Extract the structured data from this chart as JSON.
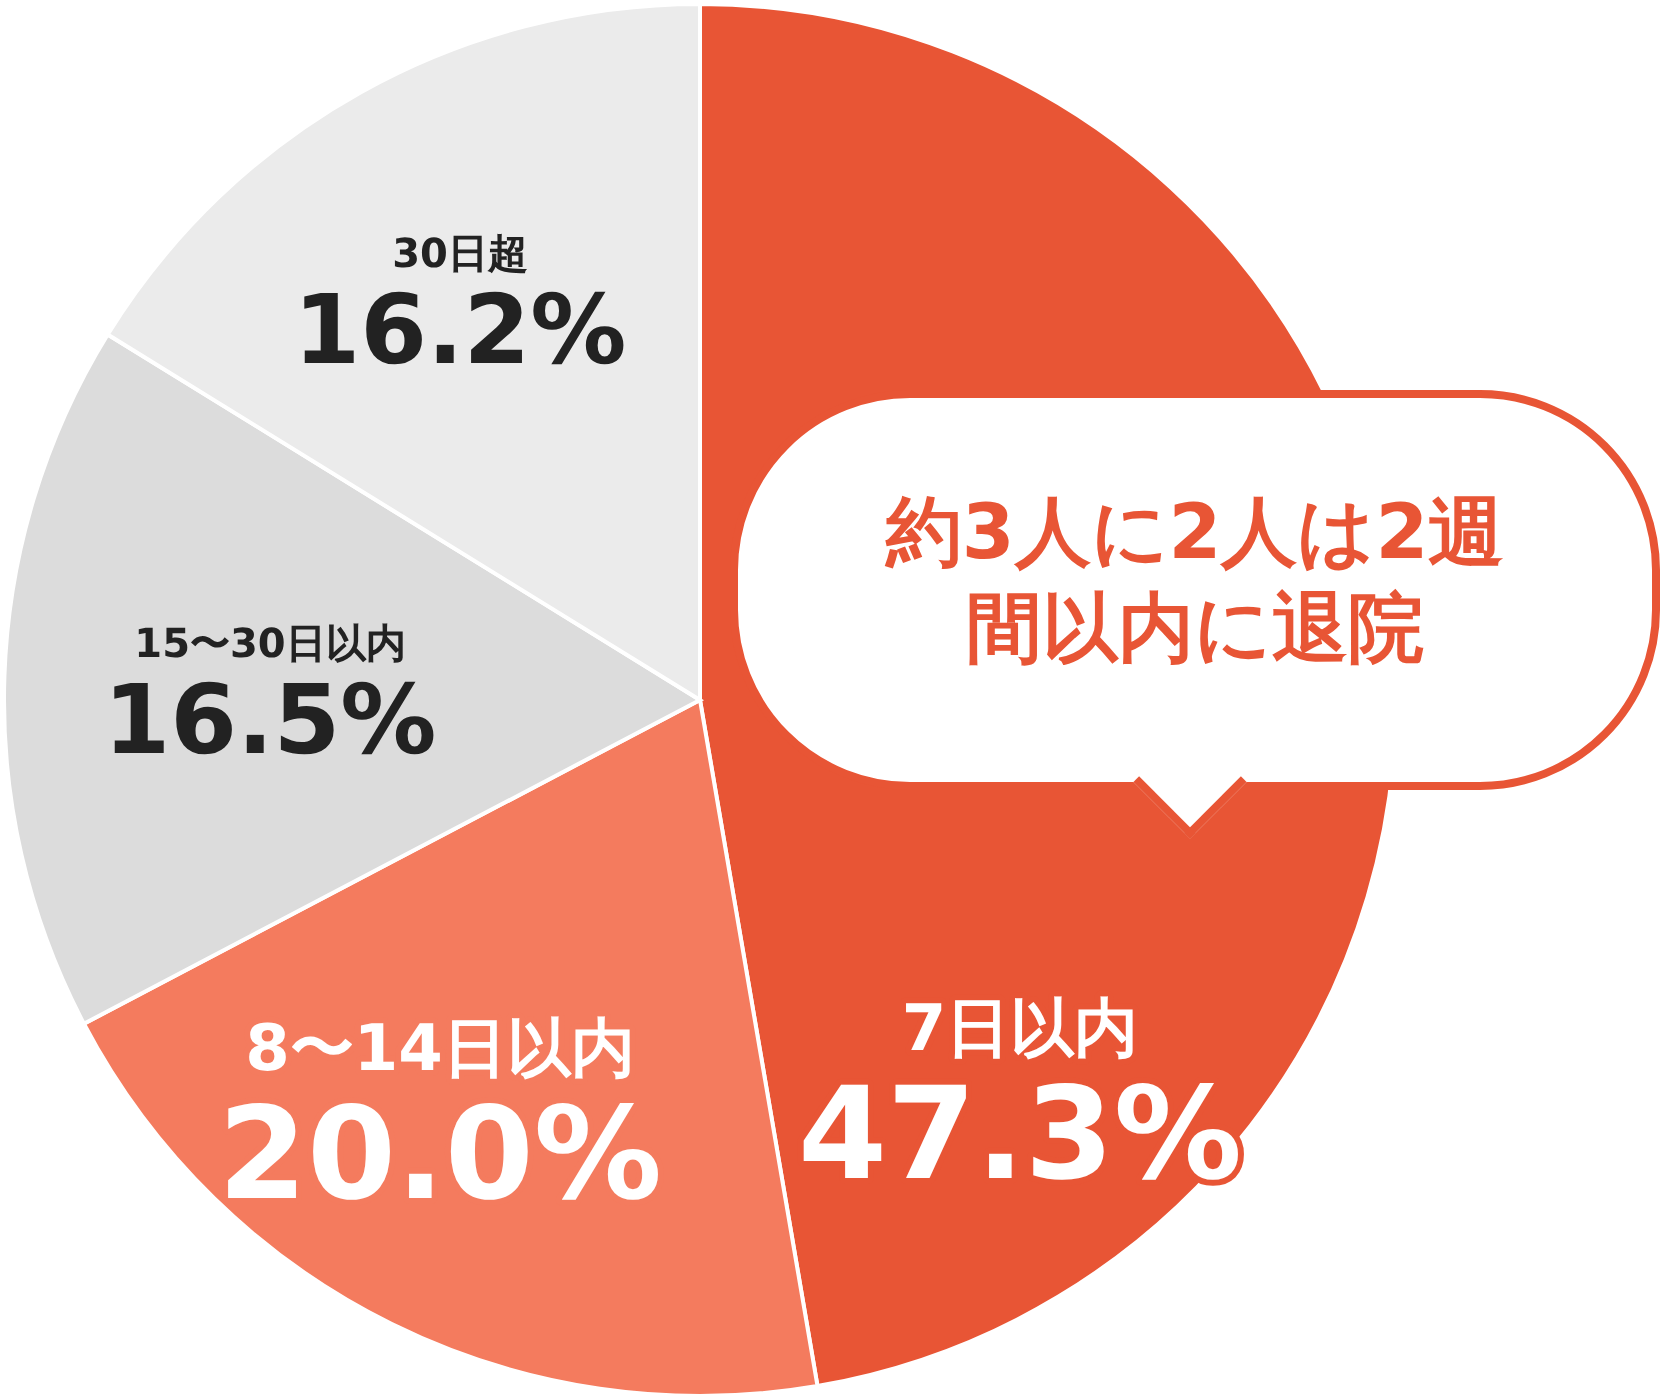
{
  "chart_data": {
    "type": "pie",
    "categories": [
      "7日以内",
      "8〜14日以内",
      "15〜30日以内",
      "30日超"
    ],
    "values": [
      47.3,
      20.0,
      16.5,
      16.2
    ],
    "colors": [
      "#e85535",
      "#f47b5e",
      "#dcdcdc",
      "#ebebeb"
    ],
    "value_labels": [
      "47.3%",
      "20.0%",
      "16.5%",
      "16.2%"
    ],
    "annotations": [
      "約3人に2人は2週間以内に退院"
    ]
  }
}
